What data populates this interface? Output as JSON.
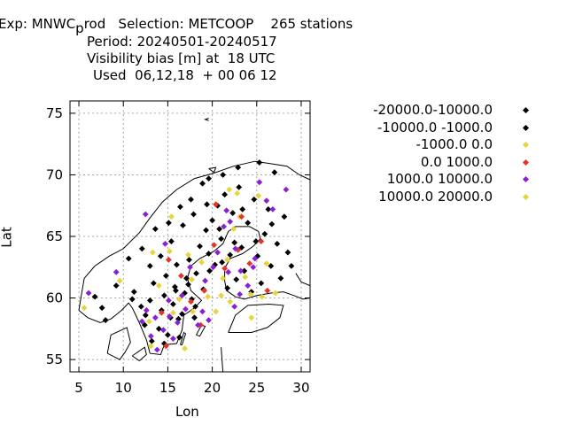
{
  "header": {
    "line1_pre": "Exp: MNWC",
    "line1_sub": "p",
    "line1_post": "rod   Selection: METCOOP    265 stations",
    "line2": "Period: 20240501-20240517",
    "line3": "Visibility bias [m] at  18 UTC",
    "line4": "Used  06,12,18  + 00 06 12"
  },
  "chart_data": {
    "type": "scatter",
    "xlabel": "Lon",
    "ylabel": "Lat",
    "xlim": [
      4,
      31
    ],
    "ylim": [
      54,
      76
    ],
    "xticks": [
      5,
      10,
      15,
      20,
      25,
      30
    ],
    "yticks": [
      55,
      60,
      65,
      70,
      75
    ],
    "grid": true,
    "legend_position": "right",
    "series": [
      {
        "name": "-20000.0-10000.0",
        "color": "#000000",
        "points": []
      },
      {
        "name": "-10000.0 -1000.0",
        "color": "#000000",
        "points": [
          [
            6.8,
            60.1
          ],
          [
            7.6,
            59.2
          ],
          [
            8.0,
            58.2
          ],
          [
            9.2,
            61.0
          ],
          [
            11.0,
            59.9
          ],
          [
            11.2,
            60.5
          ],
          [
            12.0,
            59.3
          ],
          [
            12.5,
            58.6
          ],
          [
            12.4,
            57.8
          ],
          [
            13.0,
            59.8
          ],
          [
            13.4,
            61.2
          ],
          [
            14.0,
            57.5
          ],
          [
            14.3,
            59.0
          ],
          [
            14.6,
            60.2
          ],
          [
            14.8,
            61.8
          ],
          [
            15.0,
            57.0
          ],
          [
            15.3,
            58.4
          ],
          [
            15.6,
            59.5
          ],
          [
            15.8,
            60.9
          ],
          [
            16.0,
            62.7
          ],
          [
            16.3,
            56.8
          ],
          [
            16.6,
            58.7
          ],
          [
            16.9,
            60.4
          ],
          [
            17.1,
            61.6
          ],
          [
            17.4,
            63.1
          ],
          [
            17.7,
            59.9
          ],
          [
            18.0,
            58.4
          ],
          [
            18.2,
            62.0
          ],
          [
            18.6,
            64.2
          ],
          [
            19.0,
            60.7
          ],
          [
            19.3,
            65.5
          ],
          [
            19.6,
            63.6
          ],
          [
            20.0,
            66.3
          ],
          [
            20.3,
            62.7
          ],
          [
            20.6,
            67.5
          ],
          [
            21.0,
            64.8
          ],
          [
            21.4,
            68.4
          ],
          [
            21.7,
            60.8
          ],
          [
            22.0,
            63.5
          ],
          [
            22.3,
            66.9
          ],
          [
            22.7,
            61.5
          ],
          [
            23.0,
            69.0
          ],
          [
            23.3,
            64.1
          ],
          [
            23.6,
            62.2
          ],
          [
            24.0,
            66.1
          ],
          [
            24.4,
            60.5
          ],
          [
            24.7,
            68.0
          ],
          [
            25.1,
            63.4
          ],
          [
            25.5,
            61.2
          ],
          [
            25.9,
            65.2
          ],
          [
            26.3,
            67.2
          ],
          [
            26.6,
            62.6
          ],
          [
            27.0,
            70.2
          ],
          [
            27.3,
            64.4
          ],
          [
            27.7,
            61.6
          ],
          [
            28.1,
            66.6
          ],
          [
            28.5,
            63.7
          ],
          [
            28.9,
            62.6
          ],
          [
            10.6,
            63.2
          ],
          [
            12.1,
            64.0
          ],
          [
            13.6,
            65.6
          ],
          [
            15.1,
            66.1
          ],
          [
            16.4,
            67.4
          ],
          [
            17.6,
            68.0
          ],
          [
            18.9,
            69.3
          ],
          [
            19.6,
            69.7
          ],
          [
            21.2,
            70.0
          ],
          [
            22.9,
            70.6
          ],
          [
            25.3,
            71.0
          ],
          [
            13.0,
            62.6
          ],
          [
            14.2,
            63.4
          ],
          [
            15.4,
            64.6
          ],
          [
            16.7,
            65.9
          ],
          [
            17.9,
            66.8
          ],
          [
            19.4,
            67.6
          ],
          [
            20.8,
            65.6
          ],
          [
            23.4,
            67.2
          ],
          [
            18.1,
            59.3
          ],
          [
            16.2,
            58.3
          ],
          [
            14.6,
            56.3
          ],
          [
            13.2,
            56.5
          ],
          [
            15.9,
            60.6
          ],
          [
            17.3,
            61.1
          ],
          [
            19.7,
            62.2
          ],
          [
            21.1,
            62.9
          ],
          [
            22.5,
            64.5
          ],
          [
            24.9,
            64.6
          ],
          [
            26.7,
            66.0
          ]
        ]
      },
      {
        "name": "-1000.0 0.0",
        "color": "#e8d43a",
        "points": [
          [
            5.6,
            59.2
          ],
          [
            9.6,
            61.4
          ],
          [
            12.9,
            58.1
          ],
          [
            14.0,
            61.0
          ],
          [
            15.4,
            66.6
          ],
          [
            16.3,
            59.9
          ],
          [
            17.8,
            58.9
          ],
          [
            18.8,
            62.9
          ],
          [
            19.5,
            60.1
          ],
          [
            20.4,
            58.9
          ],
          [
            21.2,
            61.6
          ],
          [
            21.7,
            63.1
          ],
          [
            22.4,
            65.6
          ],
          [
            23.1,
            66.6
          ],
          [
            23.7,
            61.7
          ],
          [
            24.3,
            60.3
          ],
          [
            25.2,
            68.3
          ],
          [
            25.6,
            60.1
          ],
          [
            26.1,
            62.8
          ],
          [
            27.1,
            60.4
          ],
          [
            21.9,
            68.8
          ],
          [
            15.2,
            63.8
          ],
          [
            16.9,
            55.9
          ],
          [
            17.3,
            63.5
          ],
          [
            22.0,
            59.7
          ],
          [
            13.3,
            63.7
          ]
        ]
      },
      {
        "name": "0.0 1000.0",
        "color": "#e4342a",
        "points": [
          [
            14.3,
            58.8
          ],
          [
            15.1,
            63.1
          ],
          [
            16.5,
            61.8
          ],
          [
            17.6,
            59.7
          ],
          [
            18.7,
            57.8
          ],
          [
            19.1,
            60.6
          ],
          [
            20.2,
            64.3
          ],
          [
            21.4,
            62.4
          ],
          [
            22.9,
            63.9
          ],
          [
            24.2,
            62.8
          ],
          [
            25.5,
            64.6
          ],
          [
            26.2,
            60.6
          ],
          [
            23.3,
            66.6
          ],
          [
            14.8,
            56.1
          ],
          [
            20.4,
            67.6
          ]
        ]
      },
      {
        "name": "1000.0 10000.0",
        "color": "#8a1fd6",
        "points": [
          [
            6.1,
            60.4
          ],
          [
            9.2,
            62.1
          ],
          [
            12.5,
            66.8
          ],
          [
            13.1,
            56.9
          ],
          [
            13.8,
            55.8
          ],
          [
            14.5,
            57.4
          ],
          [
            15.2,
            58.5
          ],
          [
            15.6,
            56.7
          ],
          [
            16.1,
            58.0
          ],
          [
            16.6,
            60.2
          ],
          [
            17.0,
            59.1
          ],
          [
            17.5,
            62.5
          ],
          [
            18.4,
            57.8
          ],
          [
            18.9,
            58.9
          ],
          [
            19.2,
            61.4
          ],
          [
            19.6,
            58.2
          ],
          [
            20.1,
            62.5
          ],
          [
            20.6,
            63.7
          ],
          [
            21.3,
            65.8
          ],
          [
            22.0,
            66.2
          ],
          [
            22.6,
            64.0
          ],
          [
            23.2,
            62.2
          ],
          [
            24.0,
            61.0
          ],
          [
            24.8,
            63.2
          ],
          [
            25.3,
            69.4
          ],
          [
            26.1,
            67.9
          ],
          [
            26.8,
            67.2
          ],
          [
            28.3,
            68.8
          ],
          [
            23.1,
            60.3
          ],
          [
            22.5,
            59.3
          ],
          [
            21.6,
            67.1
          ],
          [
            14.7,
            64.4
          ],
          [
            12.6,
            59.0
          ],
          [
            12.1,
            58.1
          ],
          [
            13.6,
            58.4
          ],
          [
            15.1,
            59.8
          ],
          [
            24.6,
            62.5
          ],
          [
            21.8,
            62.1
          ]
        ]
      },
      {
        "name": "10000.0 20000.0",
        "color": "#e8d43a",
        "points": [
          [
            13.1,
            56.1
          ],
          [
            15.6,
            58.8
          ],
          [
            17.7,
            61.5
          ],
          [
            21.0,
            60.2
          ],
          [
            22.8,
            68.5
          ],
          [
            24.4,
            58.4
          ]
        ]
      }
    ]
  }
}
